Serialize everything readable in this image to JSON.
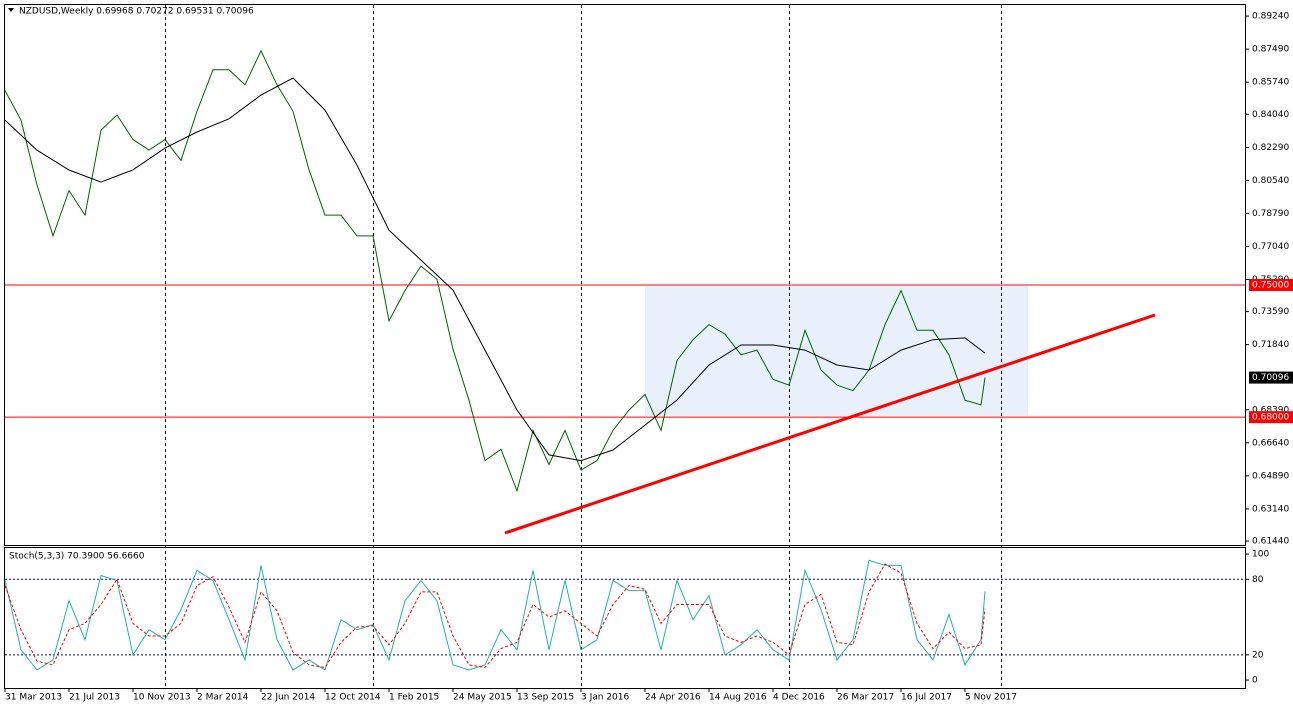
{
  "chart_data": [
    {
      "type": "line",
      "title": "NZDUSD,Weekly  0.69968 0.70272 0.69531 0.70096",
      "x": [
        "31 Mar 2013",
        "28 Apr 2013",
        "26 May 2013",
        "23 Jun 2013",
        "21 Jul 2013",
        "18 Aug 2013",
        "15 Sep 2013",
        "13 Oct 2013",
        "10 Nov 2013",
        "8 Dec 2013",
        "5 Jan 2014",
        "2 Feb 2014",
        "2 Mar 2014",
        "30 Mar 2014",
        "27 Apr 2014",
        "25 May 2014",
        "22 Jun 2014",
        "20 Jul 2014",
        "17 Aug 2014",
        "14 Sep 2014",
        "12 Oct 2014",
        "9 Nov 2014",
        "7 Dec 2014",
        "4 Jan 2015",
        "1 Feb 2015",
        "1 Mar 2015",
        "29 Mar 2015",
        "26 Apr 2015",
        "24 May 2015",
        "21 Jun 2015",
        "19 Jul 2015",
        "16 Aug 2015",
        "13 Sep 2015",
        "11 Oct 2015",
        "8 Nov 2015",
        "6 Dec 2015",
        "3 Jan 2016",
        "31 Jan 2016",
        "28 Feb 2016",
        "27 Mar 2016",
        "24 Apr 2016",
        "22 May 2016",
        "19 Jun 2016",
        "17 Jul 2016",
        "14 Aug 2016",
        "11 Sep 2016",
        "9 Oct 2016",
        "6 Nov 2016",
        "4 Dec 2016",
        "1 Jan 2017",
        "29 Jan 2017",
        "26 Feb 2017",
        "26 Mar 2017",
        "23 Apr 2017",
        "21 May 2017",
        "18 Jun 2017",
        "16 Jul 2017",
        "13 Aug 2017",
        "10 Sep 2017",
        "8 Oct 2017",
        "5 Nov 2017",
        "3 Dec 2017",
        "10 Dec 2017"
      ],
      "series": [
        {
          "color": "#006400",
          "values": [
            0.853,
            0.8373,
            0.803,
            0.776,
            0.8,
            0.787,
            0.832,
            0.84,
            0.827,
            0.8215,
            0.827,
            0.816,
            0.842,
            0.864,
            0.864,
            0.856,
            0.874,
            0.856,
            0.842,
            0.811,
            0.787,
            0.787,
            0.776,
            0.776,
            0.731,
            0.747,
            0.76,
            0.753,
            0.716,
            0.689,
            0.657,
            0.663,
            0.641,
            0.673,
            0.655,
            0.673,
            0.652,
            0.657,
            0.673,
            0.6838,
            0.692,
            0.673,
            0.71,
            0.721,
            0.729,
            0.724,
            0.713,
            0.7155,
            0.7,
            0.697,
            0.726,
            0.705,
            0.697,
            0.694,
            0.705,
            0.729,
            0.747,
            0.726,
            0.726,
            0.713,
            0.689,
            0.6865,
            0.70096
          ]
        },
        {
          "color": "#000000",
          "x": [
            "31 Mar 2013",
            "26 May 2013",
            "21 Jul 2013",
            "15 Sep 2013",
            "10 Nov 2013",
            "5 Jan 2014",
            "2 Mar 2014",
            "27 Apr 2014",
            "22 Jun 2014",
            "17 Aug 2014",
            "12 Oct 2014",
            "7 Dec 2014",
            "1 Feb 2015",
            "29 Mar 2015",
            "24 May 2015",
            "19 Jul 2015",
            "13 Sep 2015",
            "8 Nov 2015",
            "3 Jan 2016",
            "28 Feb 2016",
            "24 Apr 2016",
            "19 Jun 2016",
            "14 Aug 2016",
            "9 Oct 2016",
            "4 Dec 2016",
            "29 Jan 2017",
            "26 Mar 2017",
            "21 May 2017",
            "16 Jul 2017",
            "10 Sep 2017",
            "5 Nov 2017",
            "10 Dec 2017"
          ],
          "values": [
            0.8373,
            0.8214,
            0.8109,
            0.8045,
            0.811,
            0.8225,
            0.831,
            0.838,
            0.8506,
            0.8596,
            0.8426,
            0.8135,
            0.779,
            0.7632,
            0.7473,
            0.7155,
            0.6838,
            0.66,
            0.657,
            0.6626,
            0.6758,
            0.6891,
            0.7076,
            0.7182,
            0.7182,
            0.7155,
            0.7076,
            0.705,
            0.7155,
            0.721,
            0.722,
            0.7139
          ]
        }
      ],
      "ylim": [
        0.6123,
        0.8988
      ],
      "yticks": [
        {
          "value": 0.8924,
          "label": "0.89240"
        },
        {
          "value": 0.8749,
          "label": "0.87490"
        },
        {
          "value": 0.8574,
          "label": "0.85740"
        },
        {
          "value": 0.8404,
          "label": "0.84040"
        },
        {
          "value": 0.8229,
          "label": "0.82290"
        },
        {
          "value": 0.8054,
          "label": "0.80540"
        },
        {
          "value": 0.7879,
          "label": "0.78790"
        },
        {
          "value": 0.7704,
          "label": "0.77040"
        },
        {
          "value": 0.7529,
          "label": "0.75290"
        },
        {
          "value": 0.7359,
          "label": "0.73590"
        },
        {
          "value": 0.7184,
          "label": "0.71840"
        },
        {
          "value": 0.6839,
          "label": "0.68390"
        },
        {
          "value": 0.6664,
          "label": "0.66640"
        },
        {
          "value": 0.6489,
          "label": "0.64890"
        },
        {
          "value": 0.6314,
          "label": "0.63140"
        },
        {
          "value": 0.6144,
          "label": "0.61440"
        }
      ],
      "levels": [
        {
          "value": 0.75,
          "label": "0.75000",
          "color": "#ff0000"
        },
        {
          "value": 0.68,
          "label": "0.68000",
          "color": "#ff0000"
        }
      ],
      "last_price": {
        "value": 0.70096,
        "label": "0.70096"
      },
      "xticks": [
        "31 Mar 2013",
        "21 Jul 2013",
        "10 Nov 2013",
        "2 Mar 2014",
        "22 Jun 2014",
        "12 Oct 2014",
        "1 Feb 2015",
        "24 May 2015",
        "13 Sep 2015",
        "3 Jan 2016",
        "24 Apr 2016",
        "14 Aug 2016",
        "4 Dec 2016",
        "26 Mar 2017",
        "16 Jul 2017",
        "5 Nov 2017"
      ]
    },
    {
      "type": "line",
      "title": "Stoch(5,3,3) 70.3900 56.6660",
      "x": [
        "31 Mar 2013",
        "28 Apr 2013",
        "26 May 2013",
        "23 Jun 2013",
        "21 Jul 2013",
        "18 Aug 2013",
        "15 Sep 2013",
        "13 Oct 2013",
        "10 Nov 2013",
        "8 Dec 2013",
        "5 Jan 2014",
        "2 Feb 2014",
        "2 Mar 2014",
        "30 Mar 2014",
        "27 Apr 2014",
        "25 May 2014",
        "22 Jun 2014",
        "20 Jul 2014",
        "17 Aug 2014",
        "14 Sep 2014",
        "12 Oct 2014",
        "9 Nov 2014",
        "7 Dec 2014",
        "4 Jan 2015",
        "1 Feb 2015",
        "1 Mar 2015",
        "29 Mar 2015",
        "26 Apr 2015",
        "24 May 2015",
        "21 Jun 2015",
        "19 Jul 2015",
        "16 Aug 2015",
        "13 Sep 2015",
        "11 Oct 2015",
        "8 Nov 2015",
        "6 Dec 2015",
        "3 Jan 2016",
        "31 Jan 2016",
        "28 Feb 2016",
        "27 Mar 2016",
        "24 Apr 2016",
        "22 May 2016",
        "19 Jun 2016",
        "17 Jul 2016",
        "14 Aug 2016",
        "11 Sep 2016",
        "9 Oct 2016",
        "6 Nov 2016",
        "4 Dec 2016",
        "1 Jan 2017",
        "29 Jan 2017",
        "26 Feb 2017",
        "26 Mar 2017",
        "23 Apr 2017",
        "21 May 2017",
        "18 Jun 2017",
        "16 Jul 2017",
        "13 Aug 2017",
        "10 Sep 2017",
        "8 Oct 2017",
        "5 Nov 2017",
        "3 Dec 2017",
        "10 Dec 2017"
      ],
      "series": [
        {
          "color": "#20b2aa",
          "values": [
            79,
            24,
            8,
            16,
            63,
            32,
            83,
            79,
            20,
            40,
            32,
            56,
            87,
            79,
            48,
            16,
            91,
            32,
            8,
            16,
            8,
            48,
            40,
            44,
            16,
            63,
            79,
            63,
            12,
            8,
            12,
            40,
            24,
            87,
            24,
            79,
            24,
            32,
            79,
            71,
            71,
            24,
            79,
            48,
            67,
            20,
            28,
            40,
            24,
            16,
            87,
            56,
            16,
            32,
            95,
            91,
            91,
            32,
            16,
            52,
            12,
            32,
            70.39
          ]
        },
        {
          "color": "#ff0000",
          "dashed": true,
          "values": [
            75,
            40,
            15,
            12,
            40,
            45,
            60,
            80,
            45,
            35,
            35,
            45,
            75,
            82,
            58,
            30,
            70,
            55,
            22,
            12,
            10,
            30,
            42,
            43,
            28,
            45,
            70,
            70,
            35,
            12,
            10,
            25,
            30,
            60,
            50,
            55,
            45,
            35,
            60,
            75,
            72,
            45,
            60,
            60,
            60,
            35,
            30,
            35,
            30,
            20,
            60,
            68,
            30,
            28,
            70,
            92,
            85,
            45,
            25,
            38,
            25,
            28,
            56.666
          ]
        }
      ],
      "ylim": [
        -6.3,
        104.8
      ],
      "yticks": [
        0,
        20,
        80,
        100
      ],
      "levels": [
        20,
        80
      ]
    }
  ]
}
